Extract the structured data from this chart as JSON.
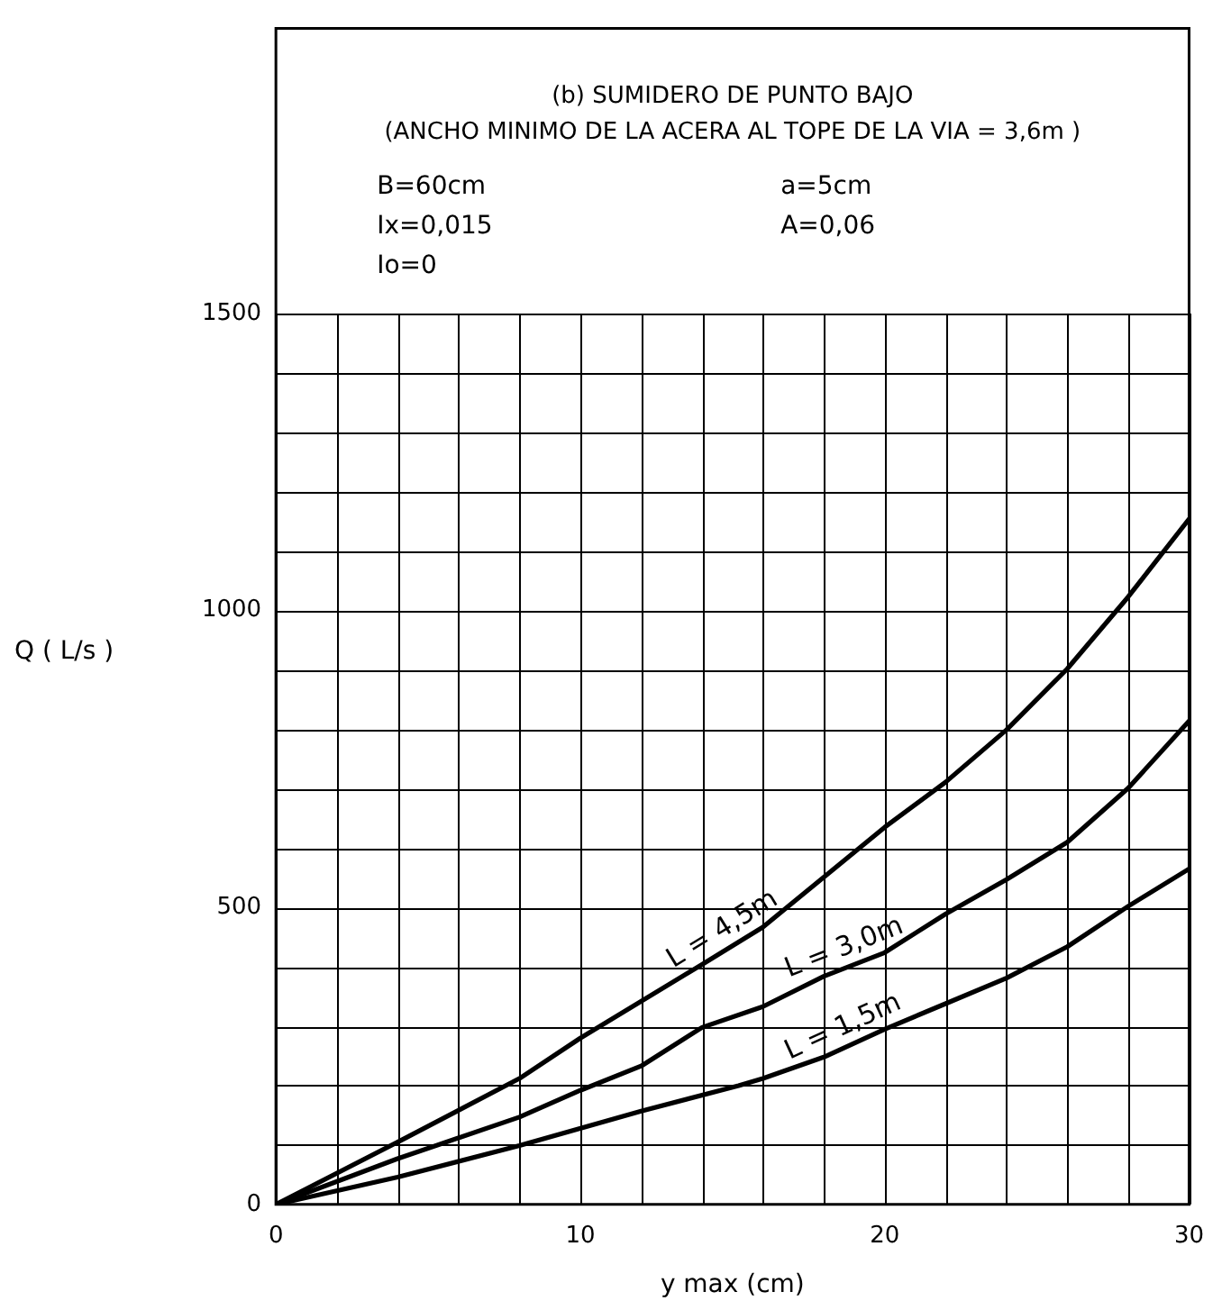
{
  "chart_data": {
    "type": "line",
    "title": "(b) SUMIDERO DE PUNTO BAJO",
    "subtitle": "(ANCHO MINIMO DE LA ACERA AL TOPE DE LA VIA = 3,6m )",
    "xlabel": "y max (cm)",
    "ylabel": "Q ( L/s )",
    "annotations": [
      "B=60cm",
      "Ix=0,015",
      "Io=0",
      "a=5cm",
      "A=0,06"
    ],
    "series": [
      {
        "name": "L = 4,5m",
        "color": "#000000",
        "x": [
          0,
          4,
          8,
          10,
          14,
          16,
          20,
          22,
          24,
          26,
          28,
          30
        ],
        "values": [
          0,
          105,
          212,
          280,
          404,
          467,
          635,
          711,
          799,
          902,
          1023,
          1154
        ]
      },
      {
        "name": "L = 3,0m",
        "color": "#000000",
        "x": [
          0,
          4,
          8,
          10,
          12,
          14,
          16,
          18,
          20,
          22,
          24,
          26,
          28,
          30
        ],
        "values": [
          0,
          77,
          147,
          192,
          233,
          298,
          333,
          384,
          424,
          489,
          547,
          610,
          701,
          814
        ]
      },
      {
        "name": "L = 1,5m",
        "color": "#000000",
        "x": [
          0,
          4,
          8,
          12,
          15.2,
          16,
          18,
          20,
          22,
          24,
          26,
          28,
          30
        ],
        "values": [
          0,
          46,
          99,
          157,
          200,
          212,
          248,
          295,
          338,
          381,
          434,
          502,
          565
        ]
      }
    ],
    "xlim": [
      0,
      30
    ],
    "ylim": [
      0,
      1980
    ],
    "xticks": [
      0,
      {
        "value": 2,
        "label": null
      },
      {
        "value": 4,
        "label": null
      },
      {
        "value": 6,
        "label": null
      },
      {
        "value": 8,
        "label": null
      },
      10,
      {
        "value": 12,
        "label": null
      },
      {
        "value": 14,
        "label": null
      },
      {
        "value": 16,
        "label": null
      },
      {
        "value": 18,
        "label": null
      },
      20,
      {
        "value": 22,
        "label": null
      },
      {
        "value": 24,
        "label": null
      },
      {
        "value": 26,
        "label": null
      },
      {
        "value": 28,
        "label": null
      },
      30
    ],
    "yticks": [
      0,
      {
        "value": 100,
        "label": null
      },
      {
        "value": 200,
        "label": null
      },
      {
        "value": 300,
        "label": null
      },
      {
        "value": 400,
        "label": null
      },
      500,
      {
        "value": 600,
        "label": null
      },
      {
        "value": 700,
        "label": null
      },
      {
        "value": 800,
        "label": null
      },
      {
        "value": 900,
        "label": null
      },
      1000,
      {
        "value": 1100,
        "label": null
      },
      {
        "value": 1200,
        "label": null
      },
      {
        "value": 1300,
        "label": null
      },
      {
        "value": 1400,
        "label": null
      },
      1500
    ],
    "grid": true,
    "legend": false,
    "marker": "none",
    "line_style": "solid"
  }
}
